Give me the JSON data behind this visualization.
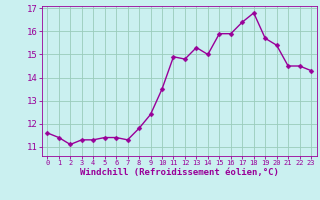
{
  "x": [
    0,
    1,
    2,
    3,
    4,
    5,
    6,
    7,
    8,
    9,
    10,
    11,
    12,
    13,
    14,
    15,
    16,
    17,
    18,
    19,
    20,
    21,
    22,
    23
  ],
  "y": [
    11.6,
    11.4,
    11.1,
    11.3,
    11.3,
    11.4,
    11.4,
    11.3,
    11.8,
    12.4,
    13.5,
    14.9,
    14.8,
    15.3,
    15.0,
    15.9,
    15.9,
    16.4,
    16.8,
    15.7,
    15.4,
    14.5,
    14.5,
    14.3
  ],
  "line_color": "#990099",
  "marker_color": "#990099",
  "bg_color": "#caf0f0",
  "grid_color": "#99ccbb",
  "xlabel": "Windchill (Refroidissement éolien,°C)",
  "ylim_min": 10.6,
  "ylim_max": 17.1,
  "xlim_min": -0.5,
  "xlim_max": 23.5,
  "yticks": [
    11,
    12,
    13,
    14,
    15,
    16,
    17
  ],
  "xticks": [
    0,
    1,
    2,
    3,
    4,
    5,
    6,
    7,
    8,
    9,
    10,
    11,
    12,
    13,
    14,
    15,
    16,
    17,
    18,
    19,
    20,
    21,
    22,
    23
  ],
  "xlabel_fontsize": 6.5,
  "ytick_fontsize": 6.5,
  "xtick_fontsize": 5.0,
  "line_width": 1.0,
  "marker_size": 2.5
}
